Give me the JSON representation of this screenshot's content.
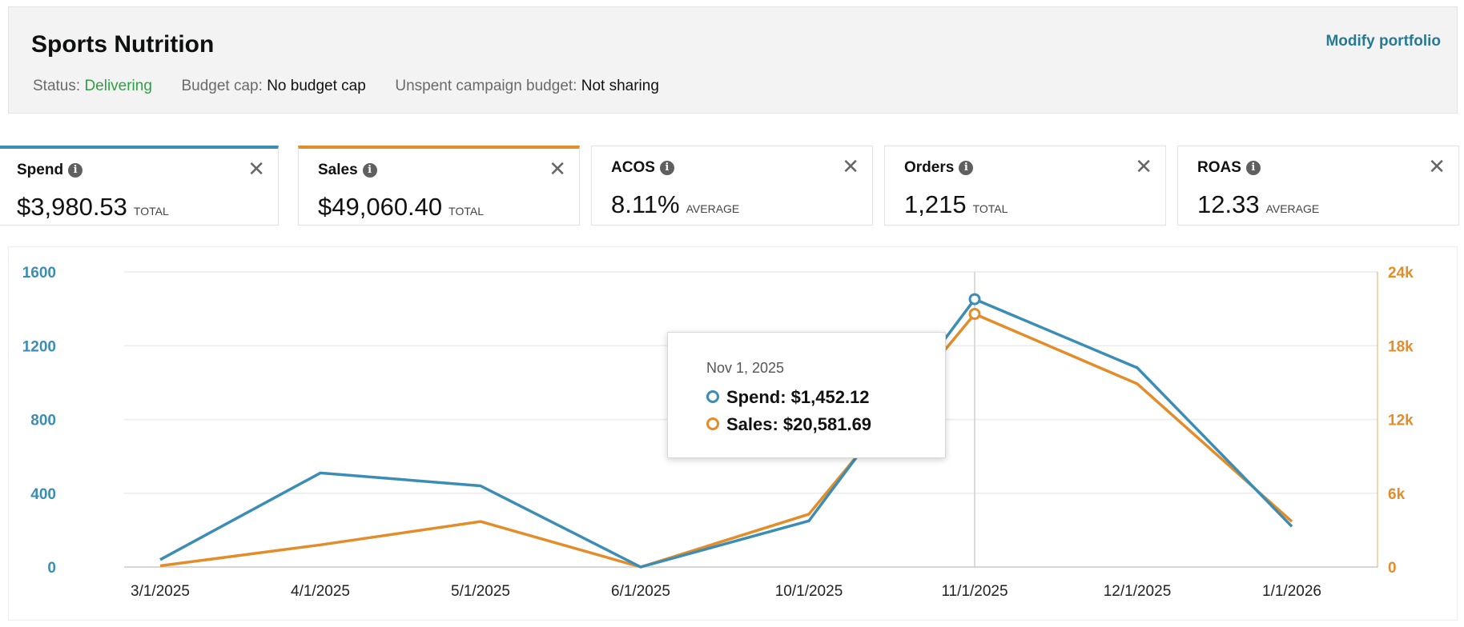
{
  "portfolio": {
    "title": "Sports Nutrition",
    "modify_label": "Modify portfolio",
    "status_label": "Status:",
    "status_value": "Delivering",
    "budget_label": "Budget cap:",
    "budget_value": "No budget cap",
    "unspent_label": "Unspent campaign budget:",
    "unspent_value": "Not sharing"
  },
  "metrics": [
    {
      "name": "Spend",
      "value": "$3,980.53",
      "unit": "TOTAL"
    },
    {
      "name": "Sales",
      "value": "$49,060.40",
      "unit": "TOTAL"
    },
    {
      "name": "ACOS",
      "value": "8.11%",
      "unit": "AVERAGE"
    },
    {
      "name": "Orders",
      "value": "1,215",
      "unit": "TOTAL"
    },
    {
      "name": "ROAS",
      "value": "12.33",
      "unit": "AVERAGE"
    }
  ],
  "icons": {
    "info": "i",
    "close": "✕"
  },
  "colors": {
    "spend": "#3c8db5",
    "sales": "#e38d2a",
    "status_green": "#2ea043",
    "link": "#267a93"
  },
  "tooltip": {
    "date": "Nov 1, 2025",
    "spend_text": "Spend: $1,452.12",
    "sales_text": "Sales: $20,581.69"
  },
  "chart_data": {
    "type": "line",
    "categories": [
      "3/1/2025",
      "4/1/2025",
      "5/1/2025",
      "6/1/2025",
      "10/1/2025",
      "11/1/2025",
      "12/1/2025",
      "1/1/2026"
    ],
    "series": [
      {
        "name": "Spend",
        "axis": "left",
        "values": [
          40,
          510,
          440,
          0,
          250,
          1452.12,
          1080,
          220
        ]
      },
      {
        "name": "Sales",
        "axis": "right",
        "values": [
          100,
          1800,
          3700,
          0,
          4300,
          20581.69,
          14900,
          3700
        ]
      }
    ],
    "y_left": {
      "ticks": [
        0,
        400,
        800,
        1200,
        1600
      ],
      "labels": [
        "0",
        "400",
        "800",
        "1200",
        "1600"
      ],
      "range": [
        0,
        1600
      ]
    },
    "y_right": {
      "ticks": [
        0,
        6000,
        12000,
        18000,
        24000
      ],
      "labels": [
        "0",
        "6k",
        "12k",
        "18k",
        "24k"
      ],
      "range": [
        0,
        24000
      ]
    },
    "highlight_index": 5,
    "grid": true
  }
}
